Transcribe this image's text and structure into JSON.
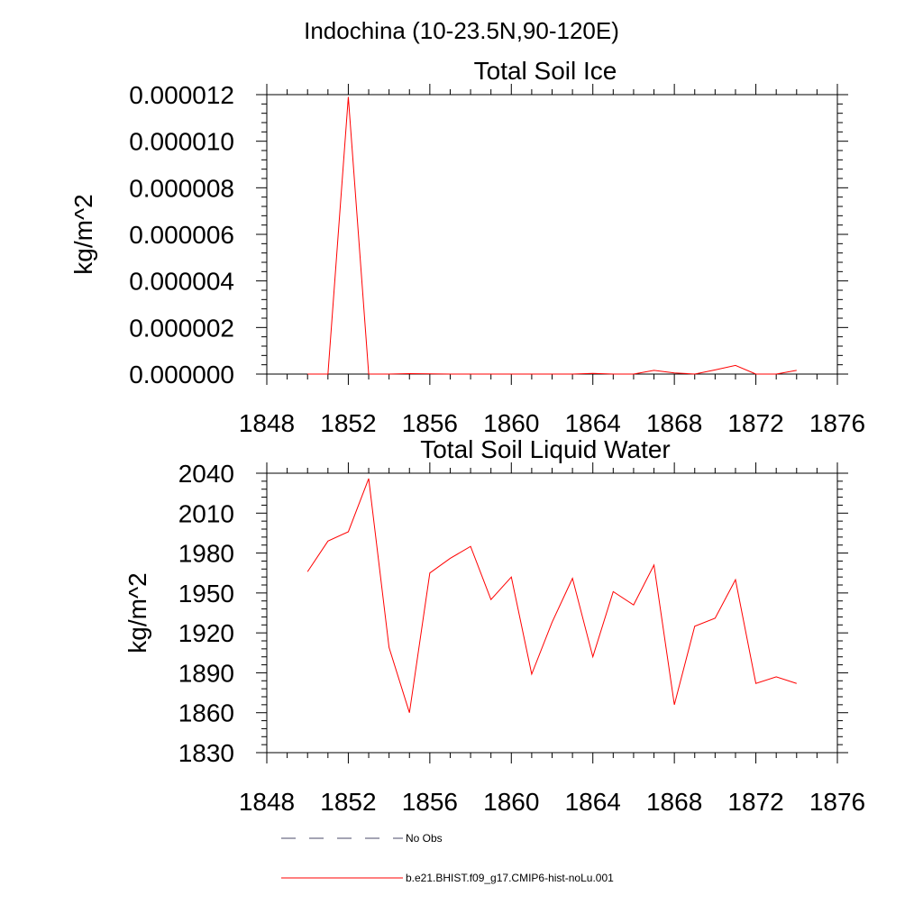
{
  "page_title": "Indochina (10-23.5N,90-120E)",
  "chart_data": [
    {
      "type": "line",
      "title": "Total Soil Ice",
      "ylabel": "kg/m^2",
      "xlabel": "",
      "xlim": [
        1848,
        1876
      ],
      "ylim": [
        0,
        1.2e-05
      ],
      "x_ticks": [
        1848,
        1852,
        1856,
        1860,
        1864,
        1868,
        1872,
        1876
      ],
      "y_ticks": [
        "0.000000",
        "0.000002",
        "0.000004",
        "0.000006",
        "0.000008",
        "0.000010",
        "0.000012"
      ],
      "series": [
        {
          "name": "b.e21.BHIST.f09_g17.CMIP6-hist-noLu.001",
          "color": "#ff0000",
          "x": [
            1850,
            1851,
            1852,
            1853,
            1854,
            1855,
            1856,
            1857,
            1858,
            1859,
            1860,
            1861,
            1862,
            1863,
            1864,
            1865,
            1866,
            1867,
            1868,
            1869,
            1870,
            1871,
            1872,
            1873,
            1874
          ],
          "values": [
            0,
            0,
            1.19e-05,
            0,
            0,
            2e-08,
            1e-08,
            0,
            0,
            0,
            0,
            0,
            0,
            0,
            3e-08,
            0,
            0,
            1.6e-07,
            5e-08,
            0,
            1.8e-07,
            3.7e-07,
            0,
            0,
            1.6e-07
          ]
        }
      ]
    },
    {
      "type": "line",
      "title": "Total Soil Liquid Water",
      "ylabel": "kg/m^2",
      "xlabel": "",
      "xlim": [
        1848,
        1876
      ],
      "ylim": [
        1830,
        2040
      ],
      "x_ticks": [
        1848,
        1852,
        1856,
        1860,
        1864,
        1868,
        1872,
        1876
      ],
      "y_ticks": [
        "1830",
        "1860",
        "1890",
        "1920",
        "1950",
        "1980",
        "2010",
        "2040"
      ],
      "series": [
        {
          "name": "b.e21.BHIST.f09_g17.CMIP6-hist-noLu.001",
          "color": "#ff0000",
          "x": [
            1850,
            1851,
            1852,
            1853,
            1854,
            1855,
            1856,
            1857,
            1858,
            1859,
            1860,
            1861,
            1862,
            1863,
            1864,
            1865,
            1866,
            1867,
            1868,
            1869,
            1870,
            1871,
            1872,
            1873,
            1874
          ],
          "values": [
            1966,
            1989,
            1996,
            2036,
            1909,
            1860,
            1965,
            1976,
            1985,
            1945,
            1962,
            1889,
            1928,
            1961,
            1902,
            1951,
            1941,
            1971,
            1866,
            1925,
            1931,
            1960,
            1882,
            1887,
            1882
          ]
        }
      ]
    }
  ],
  "legend": [
    {
      "label": "No Obs",
      "color": "#4a4a6a",
      "dash": "dashed"
    },
    {
      "label": "b.e21.BHIST.f09_g17.CMIP6-hist-noLu.001",
      "color": "#ff0000",
      "dash": "solid"
    }
  ]
}
